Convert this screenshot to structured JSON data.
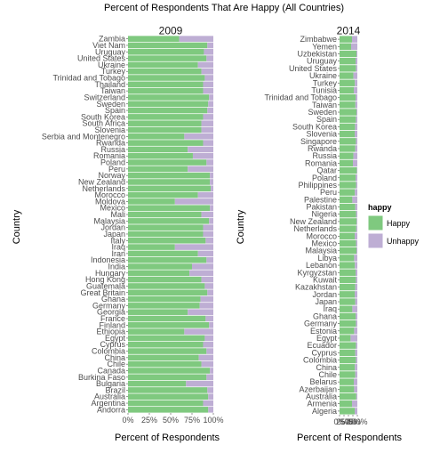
{
  "chart_data": {
    "type": "bar",
    "orientation": "horizontal",
    "stacked": true,
    "title": "Percent of Respondents That Are Happy (All Countries)",
    "xlabel": "Percent of Respondents",
    "ylabel": "Country",
    "xlim": [
      0,
      1
    ],
    "xticks": [
      "0%",
      "25%",
      "50%",
      "75%",
      "100%"
    ],
    "legend": {
      "title": "happy",
      "position": "right",
      "items": [
        {
          "label": "Happy",
          "color": "#7fc97f"
        },
        {
          "label": "Unhappy",
          "color": "#beaed4"
        }
      ]
    },
    "panels": [
      {
        "label": "2009",
        "categories": [
          "Zambia",
          "Viet Nam",
          "Uruguay",
          "United States",
          "Ukraine",
          "Turkey",
          "Trinidad and Tobago",
          "Thailand",
          "Taiwan",
          "Switzerland",
          "Sweden",
          "Spain",
          "South Korea",
          "South Africa",
          "Slovenia",
          "Serbia and Montenegro",
          "Rwanda",
          "Russia",
          "Romania",
          "Poland",
          "Peru",
          "Norway",
          "New Zealand",
          "Netherlands",
          "Morocco",
          "Moldova",
          "Mexico",
          "Mali",
          "Malaysia",
          "Jordan",
          "Japan",
          "Italy",
          "Iraq",
          "Iran",
          "Indonesia",
          "India",
          "Hungary",
          "Hong Kong",
          "Guatemala",
          "Great Britain",
          "Ghana",
          "Germany",
          "Georgia",
          "France",
          "Finland",
          "Ethiopia",
          "Egypt",
          "Cyprus",
          "Colombia",
          "China",
          "Chile",
          "Canada",
          "Burkina Faso",
          "Bulgaria",
          "Brazil",
          "Australia",
          "Argentina",
          "Andorra"
        ],
        "happy": [
          0.6,
          0.93,
          0.89,
          0.92,
          0.82,
          0.86,
          0.9,
          0.88,
          0.88,
          0.95,
          0.94,
          0.93,
          0.88,
          0.86,
          0.86,
          0.66,
          0.88,
          0.7,
          0.76,
          0.92,
          0.7,
          0.96,
          0.96,
          0.97,
          0.82,
          0.55,
          0.96,
          0.86,
          0.95,
          0.88,
          0.88,
          0.91,
          0.55,
          0.82,
          0.92,
          0.75,
          0.72,
          0.86,
          0.9,
          0.93,
          0.85,
          0.84,
          0.7,
          0.91,
          0.95,
          0.66,
          0.9,
          0.88,
          0.92,
          0.83,
          0.86,
          0.96,
          0.92,
          0.68,
          0.93,
          0.94,
          0.88,
          0.94
        ]
      },
      {
        "label": "2014",
        "categories": [
          "Zimbabwe",
          "Yemen",
          "Uzbekistan",
          "Uruguay",
          "United States",
          "Ukraine",
          "Turkey",
          "Tunisia",
          "Trinidad and Tobago",
          "Taiwan",
          "Sweden",
          "Spain",
          "South Korea",
          "Slovenia",
          "Singapore",
          "Rwanda",
          "Russia",
          "Romania",
          "Qatar",
          "Poland",
          "Philippines",
          "Peru",
          "Palestine",
          "Pakistan",
          "Nigeria",
          "New Zealand",
          "Netherlands",
          "Morocco",
          "Mexico",
          "Malaysia",
          "Libya",
          "Lebanon",
          "Kyrgyzstan",
          "Kuwait",
          "Kazakhstan",
          "Jordan",
          "Japan",
          "Iraq",
          "Ghana",
          "Germany",
          "Estonia",
          "Egypt",
          "Ecuador",
          "Cyprus",
          "Colombia",
          "China",
          "Chile",
          "Belarus",
          "Azerbaijan",
          "Australia",
          "Armenia",
          "Algeria"
        ],
        "happy": [
          0.7,
          0.65,
          0.95,
          0.9,
          0.92,
          0.78,
          0.86,
          0.8,
          0.9,
          0.89,
          0.95,
          0.92,
          0.87,
          0.85,
          0.92,
          0.88,
          0.78,
          0.75,
          0.97,
          0.9,
          0.93,
          0.86,
          0.72,
          0.88,
          0.93,
          0.96,
          0.94,
          0.85,
          0.93,
          0.95,
          0.82,
          0.86,
          0.9,
          0.92,
          0.88,
          0.85,
          0.88,
          0.72,
          0.9,
          0.92,
          0.82,
          0.62,
          0.92,
          0.88,
          0.92,
          0.86,
          0.88,
          0.8,
          0.82,
          0.94,
          0.7,
          0.85
        ]
      }
    ]
  }
}
